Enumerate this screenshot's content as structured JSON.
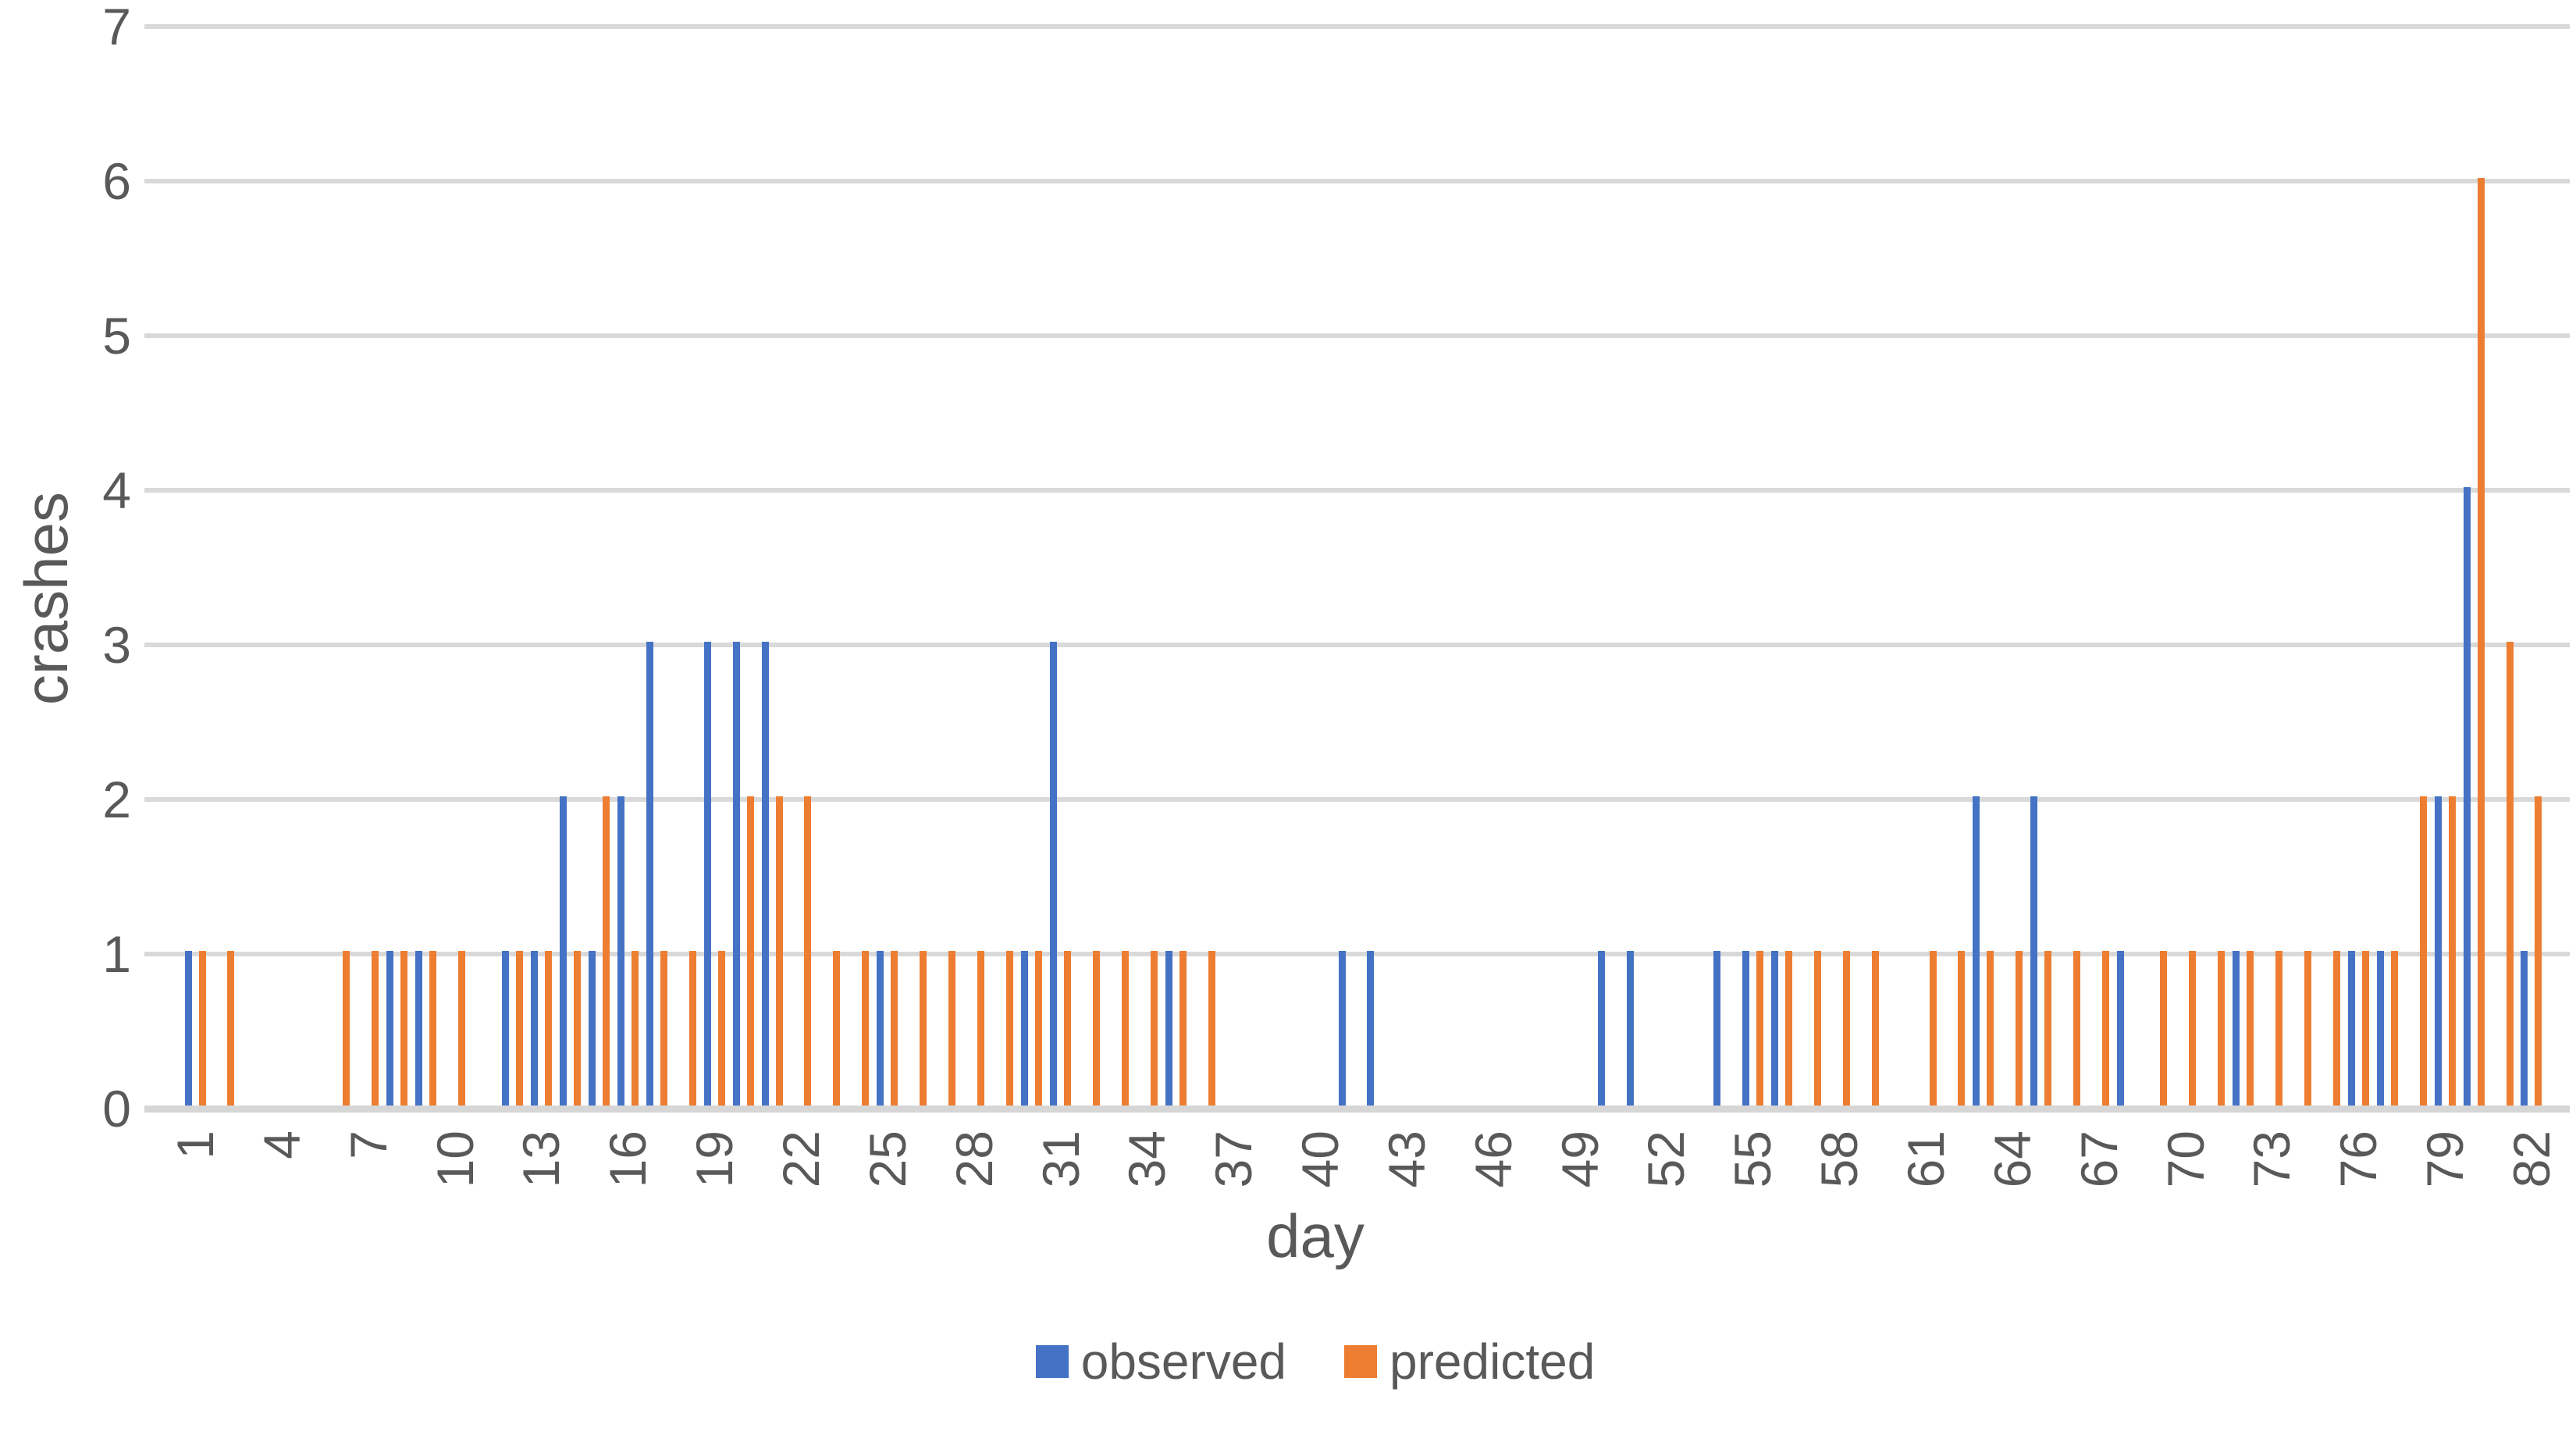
{
  "chart_data": {
    "type": "bar",
    "title": "",
    "xlabel": "day",
    "ylabel": "crashes",
    "n_days": 82,
    "x_tick_labels": [
      1,
      4,
      7,
      10,
      13,
      16,
      19,
      22,
      25,
      28,
      31,
      34,
      37,
      40,
      43,
      46,
      49,
      52,
      55,
      58,
      61,
      64,
      67,
      70,
      73,
      76,
      79,
      82
    ],
    "y_ticks": [
      0,
      1,
      2,
      3,
      4,
      5,
      6,
      7
    ],
    "ylim": [
      0,
      7
    ],
    "grid": true,
    "legend_position": "bottom",
    "series": [
      {
        "name": "observed",
        "color": "#4472C4",
        "values": [
          1,
          0,
          0,
          0,
          0,
          0,
          0,
          1,
          1,
          0,
          0,
          1,
          1,
          2,
          1,
          2,
          3,
          0,
          3,
          3,
          3,
          0,
          0,
          0,
          1,
          0,
          0,
          0,
          0,
          1,
          3,
          0,
          0,
          0,
          1,
          0,
          0,
          0,
          0,
          0,
          1,
          1,
          0,
          0,
          0,
          0,
          0,
          0,
          0,
          1,
          1,
          0,
          0,
          1,
          1,
          1,
          0,
          0,
          0,
          0,
          0,
          0,
          2,
          0,
          2,
          0,
          0,
          1,
          0,
          0,
          0,
          1,
          0,
          0,
          0,
          1,
          1,
          0,
          2,
          4,
          0,
          1
        ]
      },
      {
        "name": "predicted",
        "color": "#ED7D31",
        "values": [
          1,
          1,
          0,
          0,
          0,
          1,
          1,
          1,
          1,
          1,
          0,
          1,
          1,
          1,
          2,
          1,
          1,
          1,
          1,
          2,
          2,
          2,
          1,
          1,
          1,
          1,
          1,
          1,
          1,
          1,
          1,
          1,
          1,
          1,
          1,
          1,
          0,
          0,
          0,
          0,
          0,
          0,
          0,
          0,
          0,
          0,
          0,
          0,
          0,
          0,
          0,
          0,
          0,
          0,
          1,
          1,
          1,
          1,
          1,
          0,
          1,
          1,
          1,
          1,
          1,
          1,
          1,
          0,
          1,
          1,
          1,
          1,
          1,
          1,
          1,
          1,
          1,
          2,
          2,
          6,
          3,
          2
        ]
      }
    ]
  },
  "colors": {
    "grid": "#D9D9D9",
    "axis_text": "#595959",
    "background": "#FFFFFF"
  },
  "legend": {
    "items": [
      {
        "label": "observed",
        "color": "#4472C4"
      },
      {
        "label": "predicted",
        "color": "#ED7D31"
      }
    ]
  }
}
